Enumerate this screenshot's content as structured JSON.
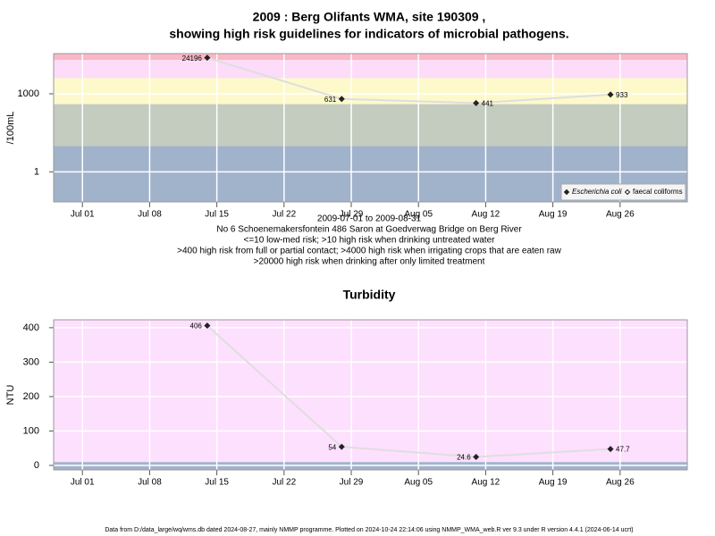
{
  "footer": "Data from D:/data_large/wq/wms.db dated 2024-08-27, mainly NMMP programme. Plotted on 2024-10-24 22:14:06 using NMMP_WMA_web.R ver 9.3 under R version 4.4.1 (2024-06-14 ucrt)",
  "chart_data": [
    {
      "type": "line",
      "title": [
        "2009 : Berg Olifants WMA, site 190309 ,",
        "showing high risk guidelines for indicators of microbial pathogens."
      ],
      "y_label": "/100mL",
      "notes": [
        "2009-07-01 to 2009-08-31",
        "No 6 Schoenemakersfontein 486 Saron at Goedverwag Bridge on Berg River",
        "<=10 low-med risk; >10 high risk when drinking untreated water",
        ">400 high risk from full or partial contact; >4000 high risk when irrigating crops that are eaten raw",
        ">20000 high risk when drinking after only limited treatment"
      ],
      "log_scale": true,
      "ylim": [
        0.07,
        35000
      ],
      "yticks": [
        1,
        1000
      ],
      "xlim": [
        "Jun 28",
        "Sep 02"
      ],
      "xticks": [
        "Jul 01",
        "Jul 08",
        "Jul 15",
        "Jul 22",
        "Jul 29",
        "Aug 05",
        "Aug 12",
        "Aug 19",
        "Aug 26"
      ],
      "grid": true,
      "band_breaks": [
        10,
        400,
        4000,
        20000
      ],
      "band_colors": [
        "#a1b2cb",
        "#c3ccbf",
        "#fdf9cb",
        "#fcdcf8",
        "#f9b8c6"
      ],
      "line_color": "#dedede",
      "x": [
        "Jul 14",
        "Jul 28",
        "Aug 11",
        "Aug 25"
      ],
      "label_side": [
        "left",
        "left",
        "right",
        "right"
      ],
      "legend": "bottom right",
      "series": [
        {
          "name": "Escherichia coli",
          "color": "#222222",
          "values": [
            24196,
            631,
            441,
            933
          ]
        },
        {
          "name": "faecal coliforms",
          "color": "#222222",
          "values": [
            null,
            null,
            null,
            null
          ]
        }
      ]
    },
    {
      "type": "line",
      "title": [
        "Turbidity"
      ],
      "y_label": "NTU",
      "log_scale": false,
      "ylim": [
        -13,
        423
      ],
      "yticks": [
        0,
        100,
        200,
        300,
        400
      ],
      "xlim": [
        "Jun 28",
        "Sep 02"
      ],
      "xticks": [
        "Jul 01",
        "Jul 08",
        "Jul 15",
        "Jul 22",
        "Jul 29",
        "Aug 05",
        "Aug 12",
        "Aug 19",
        "Aug 26"
      ],
      "grid": true,
      "band_breaks": [
        10
      ],
      "band_colors": [
        "#a1b2cb",
        "#fde0fd"
      ],
      "line_color": "#dedede",
      "x": [
        "Jul 14",
        "Jul 28",
        "Aug 11",
        "Aug 25"
      ],
      "label_side": [
        "left",
        "left",
        "left",
        "right"
      ],
      "series": [
        {
          "color": "#222222",
          "values": [
            406,
            54,
            24.6,
            47.7
          ]
        }
      ]
    }
  ]
}
